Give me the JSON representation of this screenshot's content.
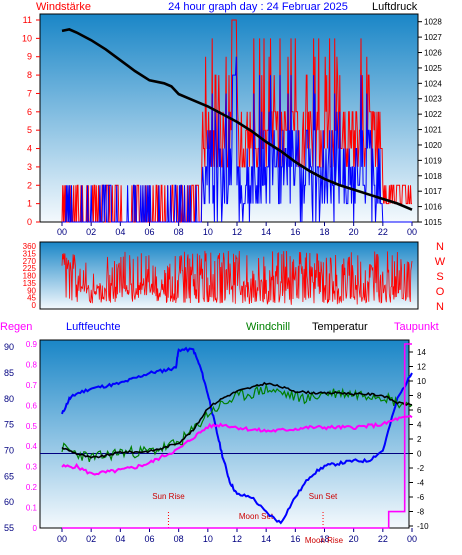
{
  "header": {
    "left_label": "Windstärke",
    "title": "24 hour graph day : 24 Februar 2025",
    "right_label": "Luftdruck"
  },
  "colors": {
    "plot_bg_top": "#1a86c7",
    "plot_bg_bottom": "#f4f9fd",
    "red": "#ff0000",
    "blue": "#0000ff",
    "black": "#000000",
    "green": "#008000",
    "magenta": "#ff00ff",
    "axis_blue": "#000080"
  },
  "chart_data": [
    {
      "type": "line",
      "name": "top-wind-pressure",
      "x_ticks": [
        "00",
        "02",
        "04",
        "06",
        "08",
        "10",
        "12",
        "14",
        "16",
        "18",
        "20",
        "22",
        "00"
      ],
      "left_axis": {
        "label": "Windstärke",
        "range": [
          0,
          11
        ],
        "ticks": [
          0,
          1,
          2,
          3,
          4,
          5,
          6,
          7,
          8,
          9,
          10,
          11
        ]
      },
      "right_axis": {
        "label": "Luftdruck",
        "range": [
          1015,
          1028.5
        ],
        "ticks": [
          1015,
          1016,
          1017,
          1018,
          1019,
          1020,
          1021,
          1022,
          1023,
          1024,
          1025,
          1026,
          1027,
          1028
        ]
      },
      "pressure_points": [
        [
          0,
          1027.4
        ],
        [
          0.5,
          1027.5
        ],
        [
          1,
          1027.3
        ],
        [
          2,
          1026.8
        ],
        [
          3,
          1026.2
        ],
        [
          4,
          1025.5
        ],
        [
          5,
          1024.8
        ],
        [
          6,
          1024.2
        ],
        [
          7,
          1024.0
        ],
        [
          7.5,
          1023.8
        ],
        [
          8,
          1023.3
        ],
        [
          9,
          1022.9
        ],
        [
          10,
          1022.5
        ],
        [
          11,
          1022.0
        ],
        [
          12,
          1021.5
        ],
        [
          13,
          1020.9
        ],
        [
          14,
          1020.2
        ],
        [
          15,
          1019.6
        ],
        [
          16,
          1018.9
        ],
        [
          17,
          1018.3
        ],
        [
          18,
          1017.8
        ],
        [
          19,
          1017.4
        ],
        [
          20,
          1017.1
        ],
        [
          21,
          1016.8
        ],
        [
          22,
          1016.5
        ],
        [
          23,
          1016.2
        ],
        [
          24,
          1015.8
        ]
      ]
    },
    {
      "type": "line",
      "name": "middle-wind-direction",
      "x_ticks": [
        "00",
        "02",
        "04",
        "06",
        "08",
        "10",
        "12",
        "14",
        "16",
        "18",
        "20",
        "22",
        "00"
      ],
      "left_axis": {
        "range": [
          0,
          360
        ],
        "ticks": [
          0,
          45,
          90,
          135,
          180,
          225,
          270,
          315,
          360
        ]
      },
      "right_labels": [
        "N",
        "W",
        "S",
        "O",
        "N"
      ]
    },
    {
      "type": "line",
      "name": "bottom-temp-humidity",
      "x_ticks": [
        "00",
        "02",
        "04",
        "06",
        "08",
        "10",
        "12",
        "14",
        "16",
        "18",
        "20",
        "22",
        "00"
      ],
      "legend": [
        "Regen",
        "Luftfeuchte",
        "Windchill",
        "Temperatur",
        "Taupunkt"
      ],
      "rain_axis": {
        "label": "Regen",
        "range": [
          0,
          0.9
        ],
        "ticks": [
          "0",
          "0.1",
          "0.2",
          "0.3",
          "0.4",
          "0.5",
          "0.6",
          "0.7",
          "0.8",
          "0.9"
        ]
      },
      "humidity_axis": {
        "label": "Luftfeuchte",
        "range": [
          55,
          91
        ],
        "ticks": [
          55,
          60,
          65,
          70,
          75,
          80,
          85,
          90
        ]
      },
      "temp_axis": {
        "label": "Temperatur",
        "range": [
          -10,
          14
        ],
        "ticks": [
          14,
          12,
          10,
          8,
          6,
          4,
          2,
          0,
          -2,
          -4,
          -6,
          -8,
          -10
        ]
      },
      "annotations": {
        "sun_rise": "Sun Rise",
        "sun_set": "Sun Set",
        "moon_set": "Moon Set",
        "moon_rise": "Moon Rise"
      },
      "sun_rise_hour": 7.3,
      "sun_set_hour": 17.9,
      "temperature_points": [
        [
          0,
          0.8
        ],
        [
          1,
          0
        ],
        [
          2,
          -0.6
        ],
        [
          3,
          -0.3
        ],
        [
          4,
          0.2
        ],
        [
          5,
          0.2
        ],
        [
          6,
          0.3
        ],
        [
          7,
          0.8
        ],
        [
          8,
          1.5
        ],
        [
          9,
          3.2
        ],
        [
          10,
          6.3
        ],
        [
          11,
          7.6
        ],
        [
          12,
          8.6
        ],
        [
          13,
          9.1
        ],
        [
          14,
          9.7
        ],
        [
          15,
          9.2
        ],
        [
          16,
          8.6
        ],
        [
          17,
          8.4
        ],
        [
          18,
          8.3
        ],
        [
          19,
          8.4
        ],
        [
          20,
          8.2
        ],
        [
          21,
          8.2
        ],
        [
          22,
          8.0
        ],
        [
          23,
          7.0
        ],
        [
          24,
          6.7
        ]
      ],
      "dewpoint_points": [
        [
          0,
          -1.8
        ],
        [
          1,
          -1.8
        ],
        [
          2,
          -2.8
        ],
        [
          3,
          -2.6
        ],
        [
          4,
          -2.3
        ],
        [
          5,
          -1.9
        ],
        [
          6,
          -1.3
        ],
        [
          7,
          -0.3
        ],
        [
          8,
          0.6
        ],
        [
          9,
          2.2
        ],
        [
          10,
          3.7
        ],
        [
          11,
          4.0
        ],
        [
          12,
          3.6
        ],
        [
          13,
          3.3
        ],
        [
          14,
          3.1
        ],
        [
          15,
          3.2
        ],
        [
          16,
          3.4
        ],
        [
          17,
          3.6
        ],
        [
          18,
          3.6
        ],
        [
          19,
          3.6
        ],
        [
          20,
          3.6
        ],
        [
          21,
          3.8
        ],
        [
          22,
          4.0
        ],
        [
          23,
          4.8
        ],
        [
          24,
          5.0
        ]
      ],
      "humidity_points": [
        [
          0,
          77
        ],
        [
          0.5,
          80
        ],
        [
          1,
          81
        ],
        [
          2,
          82
        ],
        [
          3,
          82.5
        ],
        [
          4,
          83
        ],
        [
          5,
          84
        ],
        [
          6,
          85
        ],
        [
          7,
          85.5
        ],
        [
          7.8,
          86
        ],
        [
          8,
          89.5
        ],
        [
          9,
          89.5
        ],
        [
          9.5,
          86
        ],
        [
          10,
          81
        ],
        [
          10.5,
          75
        ],
        [
          11,
          69
        ],
        [
          11.5,
          64
        ],
        [
          12,
          61.5
        ],
        [
          13,
          61
        ],
        [
          14,
          58
        ],
        [
          15,
          56
        ],
        [
          16,
          61
        ],
        [
          17,
          65
        ],
        [
          18,
          67
        ],
        [
          19,
          67.5
        ],
        [
          20,
          68
        ],
        [
          21,
          68
        ],
        [
          22,
          70
        ],
        [
          23,
          80
        ],
        [
          24,
          85
        ]
      ],
      "rain_points": [
        [
          0,
          0
        ],
        [
          22.2,
          0
        ],
        [
          22.4,
          0.08
        ],
        [
          23.4,
          0.08
        ],
        [
          23.5,
          0.9
        ],
        [
          23.9,
          0.9
        ],
        [
          24,
          0.9
        ]
      ]
    }
  ]
}
